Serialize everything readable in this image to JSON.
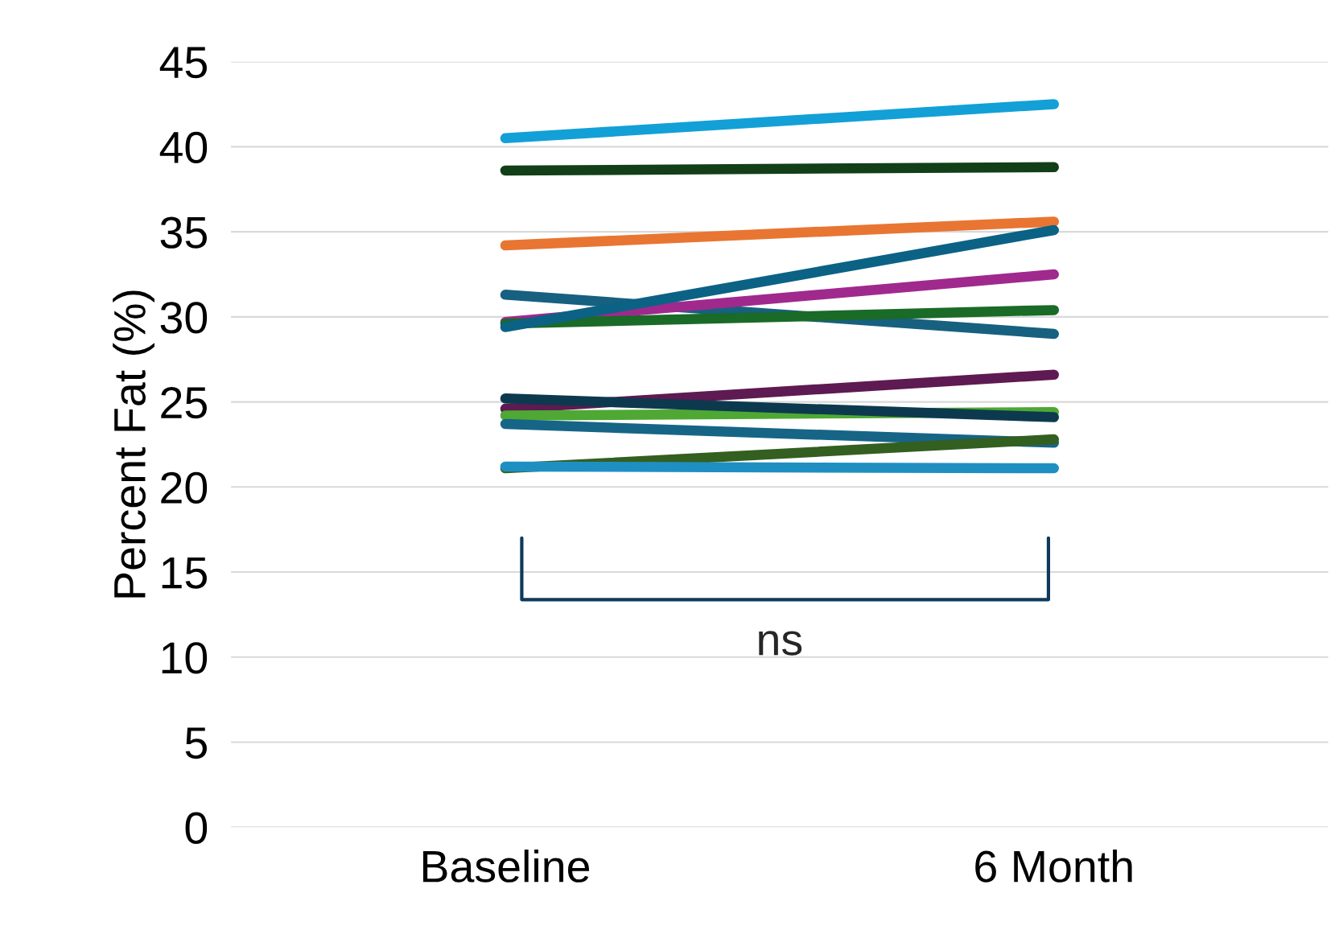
{
  "chart_data": {
    "type": "line",
    "ylabel": "Percent Fat (%)",
    "categories": [
      "Baseline",
      "6 Month"
    ],
    "series": [
      {
        "color": "#12a0d7",
        "values": [
          40.5,
          42.5
        ]
      },
      {
        "color": "#123f18",
        "values": [
          38.6,
          38.8
        ]
      },
      {
        "color": "#e97532",
        "values": [
          34.2,
          35.6
        ]
      },
      {
        "color": "#17607f",
        "values": [
          31.3,
          29.0
        ]
      },
      {
        "color": "#a0298e",
        "values": [
          29.7,
          32.5
        ]
      },
      {
        "color": "#1a6a28",
        "values": [
          29.6,
          30.4
        ]
      },
      {
        "color": "#0b6285",
        "values": [
          29.4,
          35.1
        ]
      },
      {
        "color": "#5e1a52",
        "values": [
          24.6,
          26.6
        ]
      },
      {
        "color": "#4ea833",
        "values": [
          24.2,
          24.4
        ]
      },
      {
        "color": "#0d394f",
        "values": [
          25.2,
          24.1
        ]
      },
      {
        "color": "#166587",
        "values": [
          23.7,
          22.6
        ]
      },
      {
        "color": "#335f21",
        "values": [
          21.1,
          22.8
        ]
      },
      {
        "color": "#1f8fc2",
        "values": [
          21.2,
          21.1
        ]
      }
    ],
    "ylim": [
      0,
      45
    ],
    "yticks": [
      0,
      5,
      10,
      15,
      20,
      25,
      30,
      35,
      40,
      45
    ],
    "grid": "y",
    "legend": false,
    "marker": "none",
    "line_style": "solid",
    "annotations": [
      "ns"
    ]
  }
}
